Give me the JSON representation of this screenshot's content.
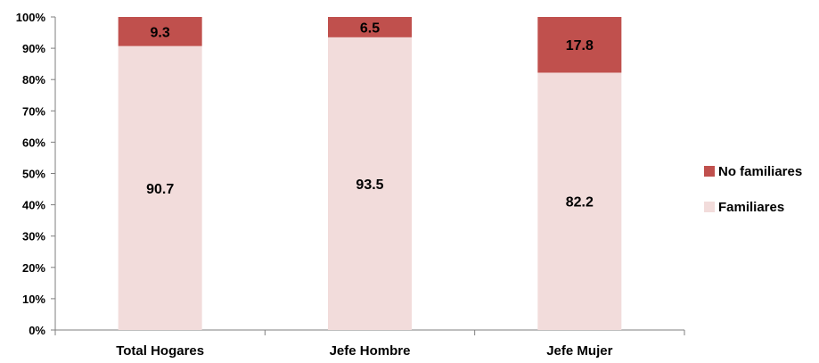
{
  "chart_data": {
    "type": "bar",
    "stacked": true,
    "categories": [
      "Total Hogares",
      "Jefe Hombre",
      "Jefe Mujer"
    ],
    "series": [
      {
        "name": "Familiares",
        "values": [
          90.7,
          93.5,
          82.2
        ],
        "color": "#f2dcdb"
      },
      {
        "name": "No familiares",
        "values": [
          9.3,
          6.5,
          17.8
        ],
        "color": "#c0504d"
      }
    ],
    "y_ticks": [
      "0%",
      "10%",
      "20%",
      "30%",
      "40%",
      "50%",
      "60%",
      "70%",
      "80%",
      "90%",
      "100%"
    ],
    "ylim": [
      0,
      100
    ],
    "grid": false,
    "legend": {
      "placement": "right",
      "order": [
        "No familiares",
        "Familiares"
      ]
    }
  }
}
